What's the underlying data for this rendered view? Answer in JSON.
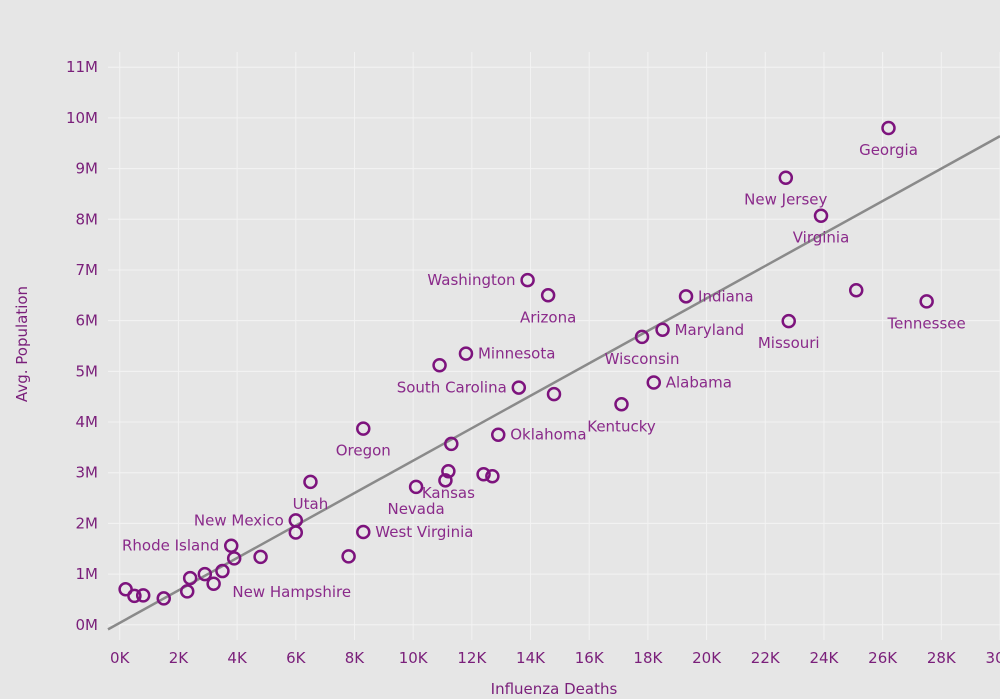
{
  "chart_data": {
    "type": "scatter",
    "xlabel": "Influenza Deaths",
    "ylabel": "Avg. Population",
    "xlim": [
      -400,
      30000
    ],
    "ylim": [
      -300000,
      11300000
    ],
    "x_ticks": [
      0,
      2000,
      4000,
      6000,
      8000,
      10000,
      12000,
      14000,
      16000,
      18000,
      20000,
      22000,
      24000,
      26000,
      28000,
      30000
    ],
    "x_tick_labels": [
      "0K",
      "2K",
      "4K",
      "6K",
      "8K",
      "10K",
      "12K",
      "14K",
      "16K",
      "18K",
      "20K",
      "22K",
      "24K",
      "26K",
      "28K",
      "30K"
    ],
    "y_ticks": [
      0,
      1000000,
      2000000,
      3000000,
      4000000,
      5000000,
      6000000,
      7000000,
      8000000,
      9000000,
      10000000,
      11000000
    ],
    "y_tick_labels": [
      "0M",
      "1M",
      "2M",
      "3M",
      "4M",
      "5M",
      "6M",
      "7M",
      "8M",
      "9M",
      "10M",
      "11M"
    ],
    "trend_line": {
      "x0": -400,
      "y0": -90000,
      "x1": 30000,
      "y1": 9640000
    },
    "points": [
      {
        "name": "Georgia",
        "x": 26200,
        "y": 9800000,
        "label_pos": "below"
      },
      {
        "name": "New Jersey",
        "x": 22700,
        "y": 8820000,
        "label_pos": "below"
      },
      {
        "name": "Virginia",
        "x": 23900,
        "y": 8070000,
        "label_pos": "below"
      },
      {
        "name": "",
        "x": 25100,
        "y": 6600000
      },
      {
        "name": "Tennessee",
        "x": 27500,
        "y": 6380000,
        "label_pos": "below"
      },
      {
        "name": "Indiana",
        "x": 19300,
        "y": 6480000,
        "label_pos": "right"
      },
      {
        "name": "Missouri",
        "x": 22800,
        "y": 5990000,
        "label_pos": "below"
      },
      {
        "name": "Maryland",
        "x": 18500,
        "y": 5820000,
        "label_pos": "right"
      },
      {
        "name": "Wisconsin",
        "x": 17800,
        "y": 5680000,
        "label_pos": "below"
      },
      {
        "name": "Alabama",
        "x": 18200,
        "y": 4780000,
        "label_pos": "right"
      },
      {
        "name": "Kentucky",
        "x": 17100,
        "y": 4350000,
        "label_pos": "below"
      },
      {
        "name": "Washington",
        "x": 13900,
        "y": 6800000,
        "label_pos": "left"
      },
      {
        "name": "Arizona",
        "x": 14600,
        "y": 6500000,
        "label_pos": "below"
      },
      {
        "name": "Minnesota",
        "x": 11800,
        "y": 5350000,
        "label_pos": "right"
      },
      {
        "name": "",
        "x": 10900,
        "y": 5120000
      },
      {
        "name": "South Carolina",
        "x": 13600,
        "y": 4680000,
        "label_pos": "left"
      },
      {
        "name": "",
        "x": 14800,
        "y": 4550000
      },
      {
        "name": "Oklahoma",
        "x": 12900,
        "y": 3750000,
        "label_pos": "right"
      },
      {
        "name": "",
        "x": 11300,
        "y": 3570000
      },
      {
        "name": "Oregon",
        "x": 8300,
        "y": 3870000,
        "label_pos": "below"
      },
      {
        "name": "Kansas",
        "x": 11200,
        "y": 3030000,
        "label_pos": "below"
      },
      {
        "name": "",
        "x": 11100,
        "y": 2850000
      },
      {
        "name": "",
        "x": 12400,
        "y": 2970000
      },
      {
        "name": "",
        "x": 12700,
        "y": 2930000
      },
      {
        "name": "Nevada",
        "x": 10100,
        "y": 2720000,
        "label_pos": "below"
      },
      {
        "name": "Utah",
        "x": 6500,
        "y": 2820000,
        "label_pos": "below"
      },
      {
        "name": "New Mexico",
        "x": 6000,
        "y": 2060000,
        "label_pos": "left"
      },
      {
        "name": "",
        "x": 6000,
        "y": 1820000
      },
      {
        "name": "West Virginia",
        "x": 8300,
        "y": 1830000,
        "label_pos": "right"
      },
      {
        "name": "",
        "x": 7800,
        "y": 1350000
      },
      {
        "name": "",
        "x": 4800,
        "y": 1340000
      },
      {
        "name": "Rhode Island",
        "x": 3800,
        "y": 1560000,
        "label_pos": "left"
      },
      {
        "name": "",
        "x": 3900,
        "y": 1310000
      },
      {
        "name": "New Hampshire",
        "x": 3500,
        "y": 1060000,
        "label_pos": "below-right"
      },
      {
        "name": "",
        "x": 2900,
        "y": 1000000
      },
      {
        "name": "",
        "x": 2400,
        "y": 920000
      },
      {
        "name": "",
        "x": 3200,
        "y": 810000
      },
      {
        "name": "",
        "x": 2300,
        "y": 660000
      },
      {
        "name": "",
        "x": 1500,
        "y": 520000
      },
      {
        "name": "",
        "x": 800,
        "y": 580000
      },
      {
        "name": "",
        "x": 500,
        "y": 570000
      },
      {
        "name": "",
        "x": 200,
        "y": 700000
      }
    ]
  },
  "colors": {
    "background": "#e6e6e6",
    "point": "#7d137d",
    "text": "#7a1f7a",
    "trend": "#8a8a8a",
    "grid": "#f3f3f3"
  }
}
